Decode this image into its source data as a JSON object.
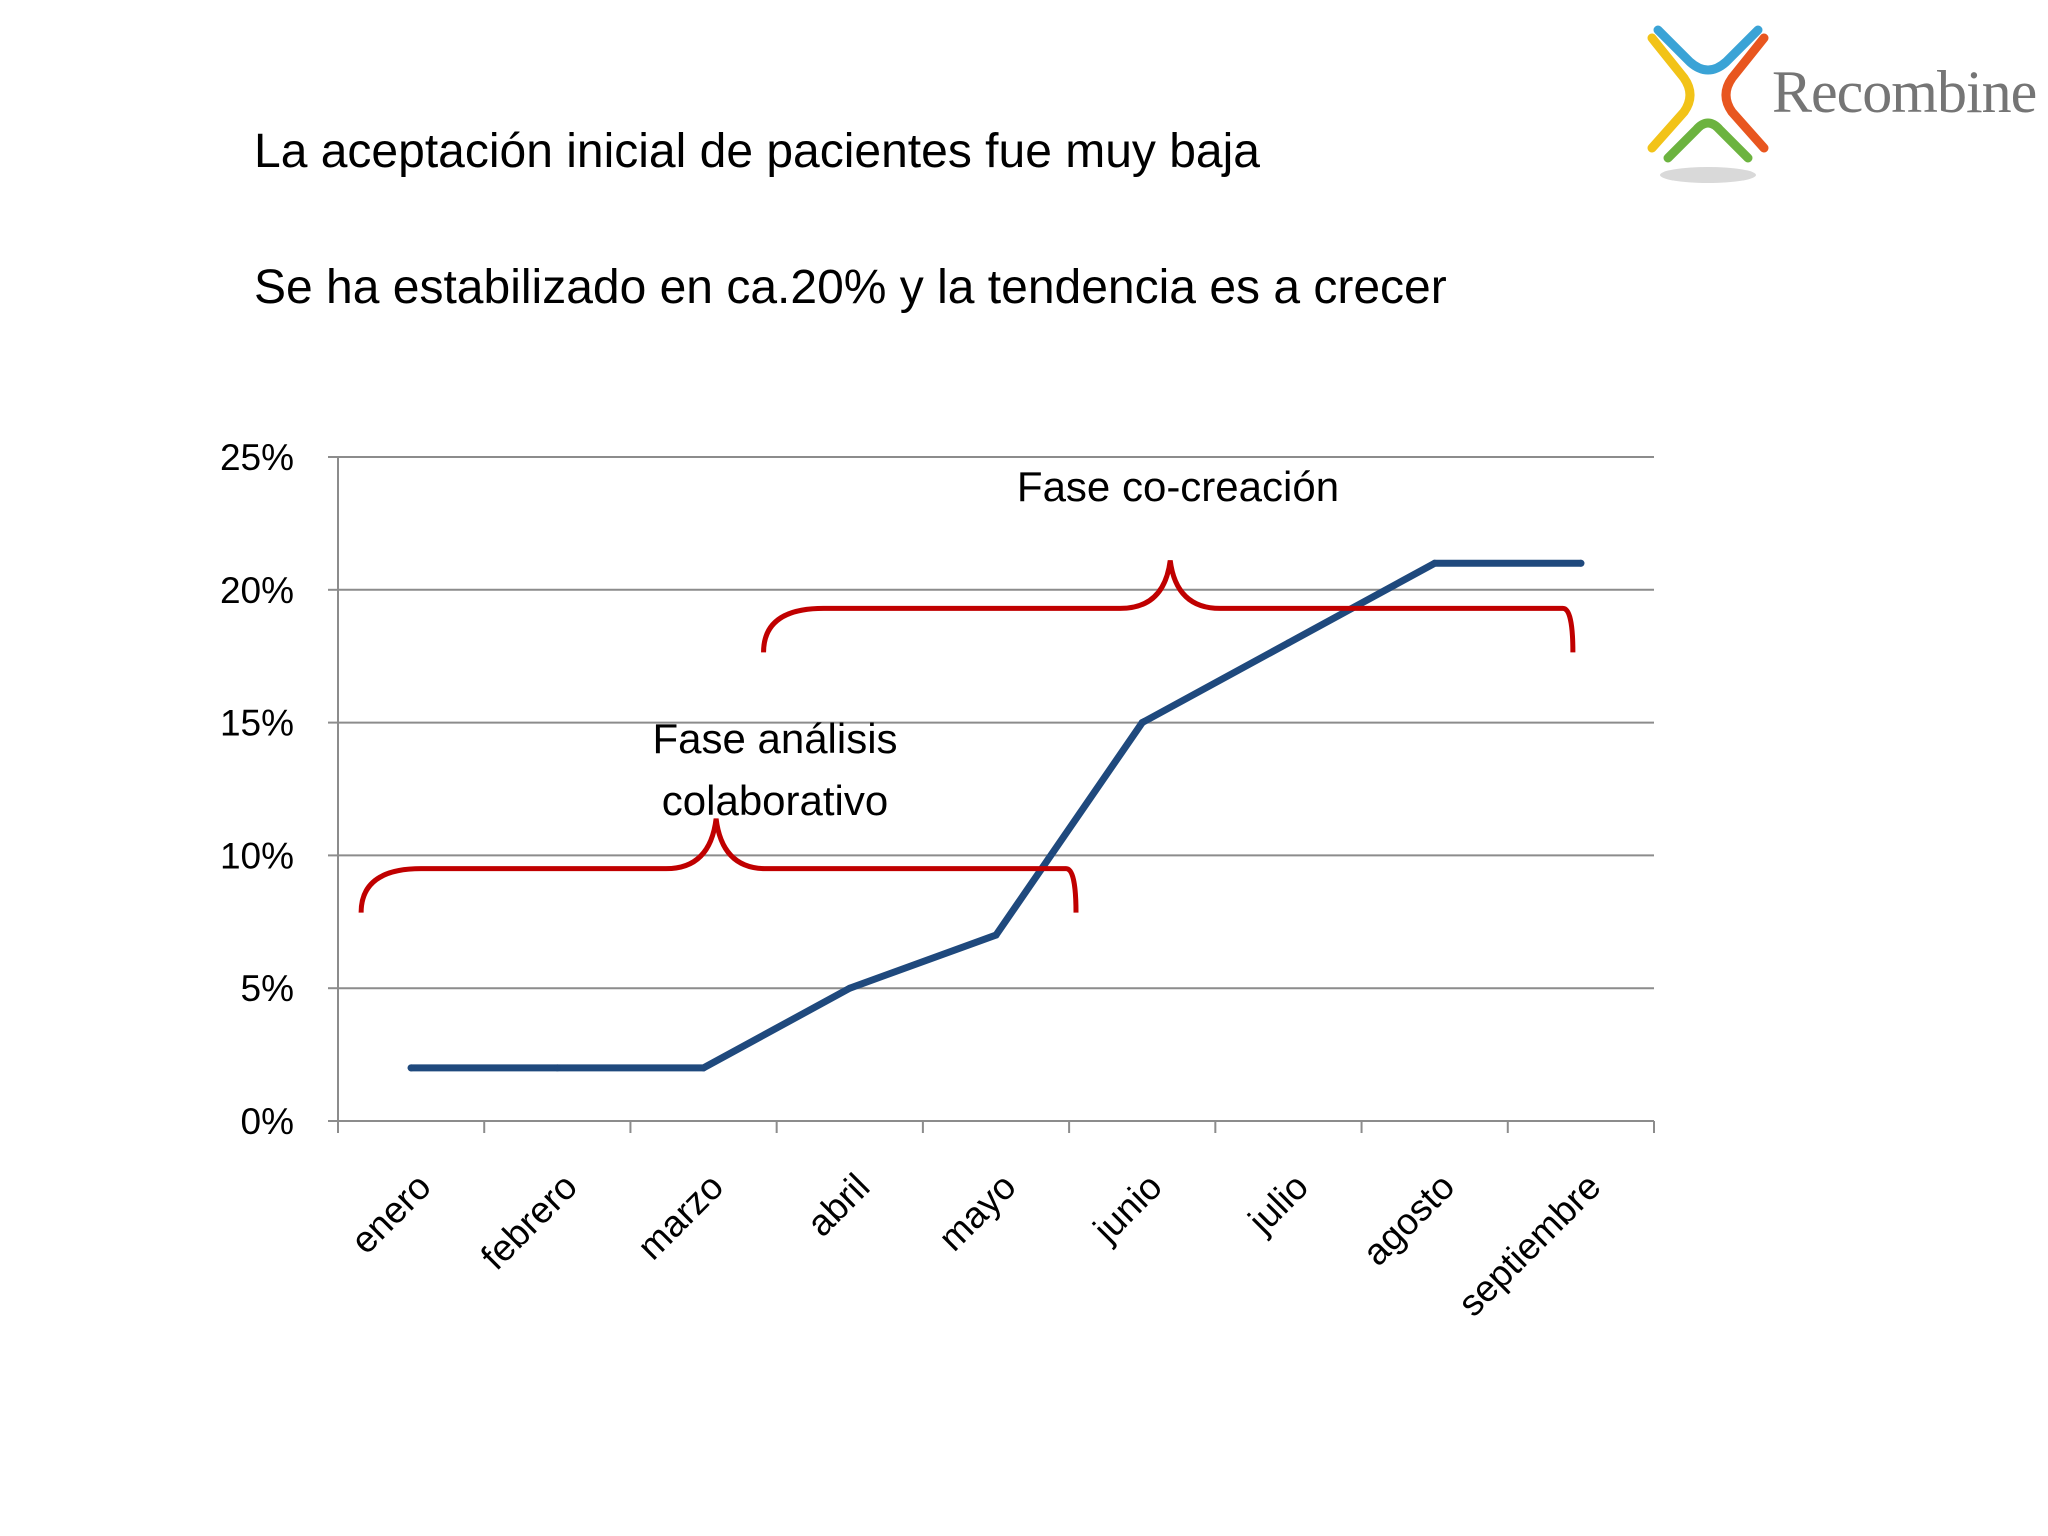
{
  "slide": {
    "heading1": "La aceptación inicial de pacientes fue muy baja",
    "heading2": "Se ha estabilizado en ca.20% y la tendencia es a crecer"
  },
  "logo": {
    "text": "Recombine",
    "colors": [
      "#3aa3d6",
      "#f2c318",
      "#6cb33f",
      "#e8561f"
    ]
  },
  "chart_data": {
    "type": "line",
    "categories": [
      "enero",
      "febrero",
      "marzo",
      "abril",
      "mayo",
      "junio",
      "julio",
      "agosto",
      "septiembre"
    ],
    "series": [
      {
        "values": [
          0.02,
          0.02,
          0.02,
          0.05,
          0.07,
          0.15,
          0.18,
          0.21,
          0.21
        ],
        "color": "#1f497d"
      }
    ],
    "y_ticks": [
      "0%",
      "5%",
      "10%",
      "15%",
      "20%",
      "25%"
    ],
    "ylim": [
      0,
      0.25
    ],
    "grid": true,
    "annotations": [
      {
        "lines": [
          "Fase análisis",
          "colaborativo"
        ],
        "from": "enero",
        "to": "mayo",
        "level": 0.095,
        "color": "#c00000"
      },
      {
        "lines": [
          "Fase co-creación"
        ],
        "from": "marzo",
        "to": "septiembre",
        "level": 0.193,
        "color": "#c00000"
      }
    ]
  }
}
